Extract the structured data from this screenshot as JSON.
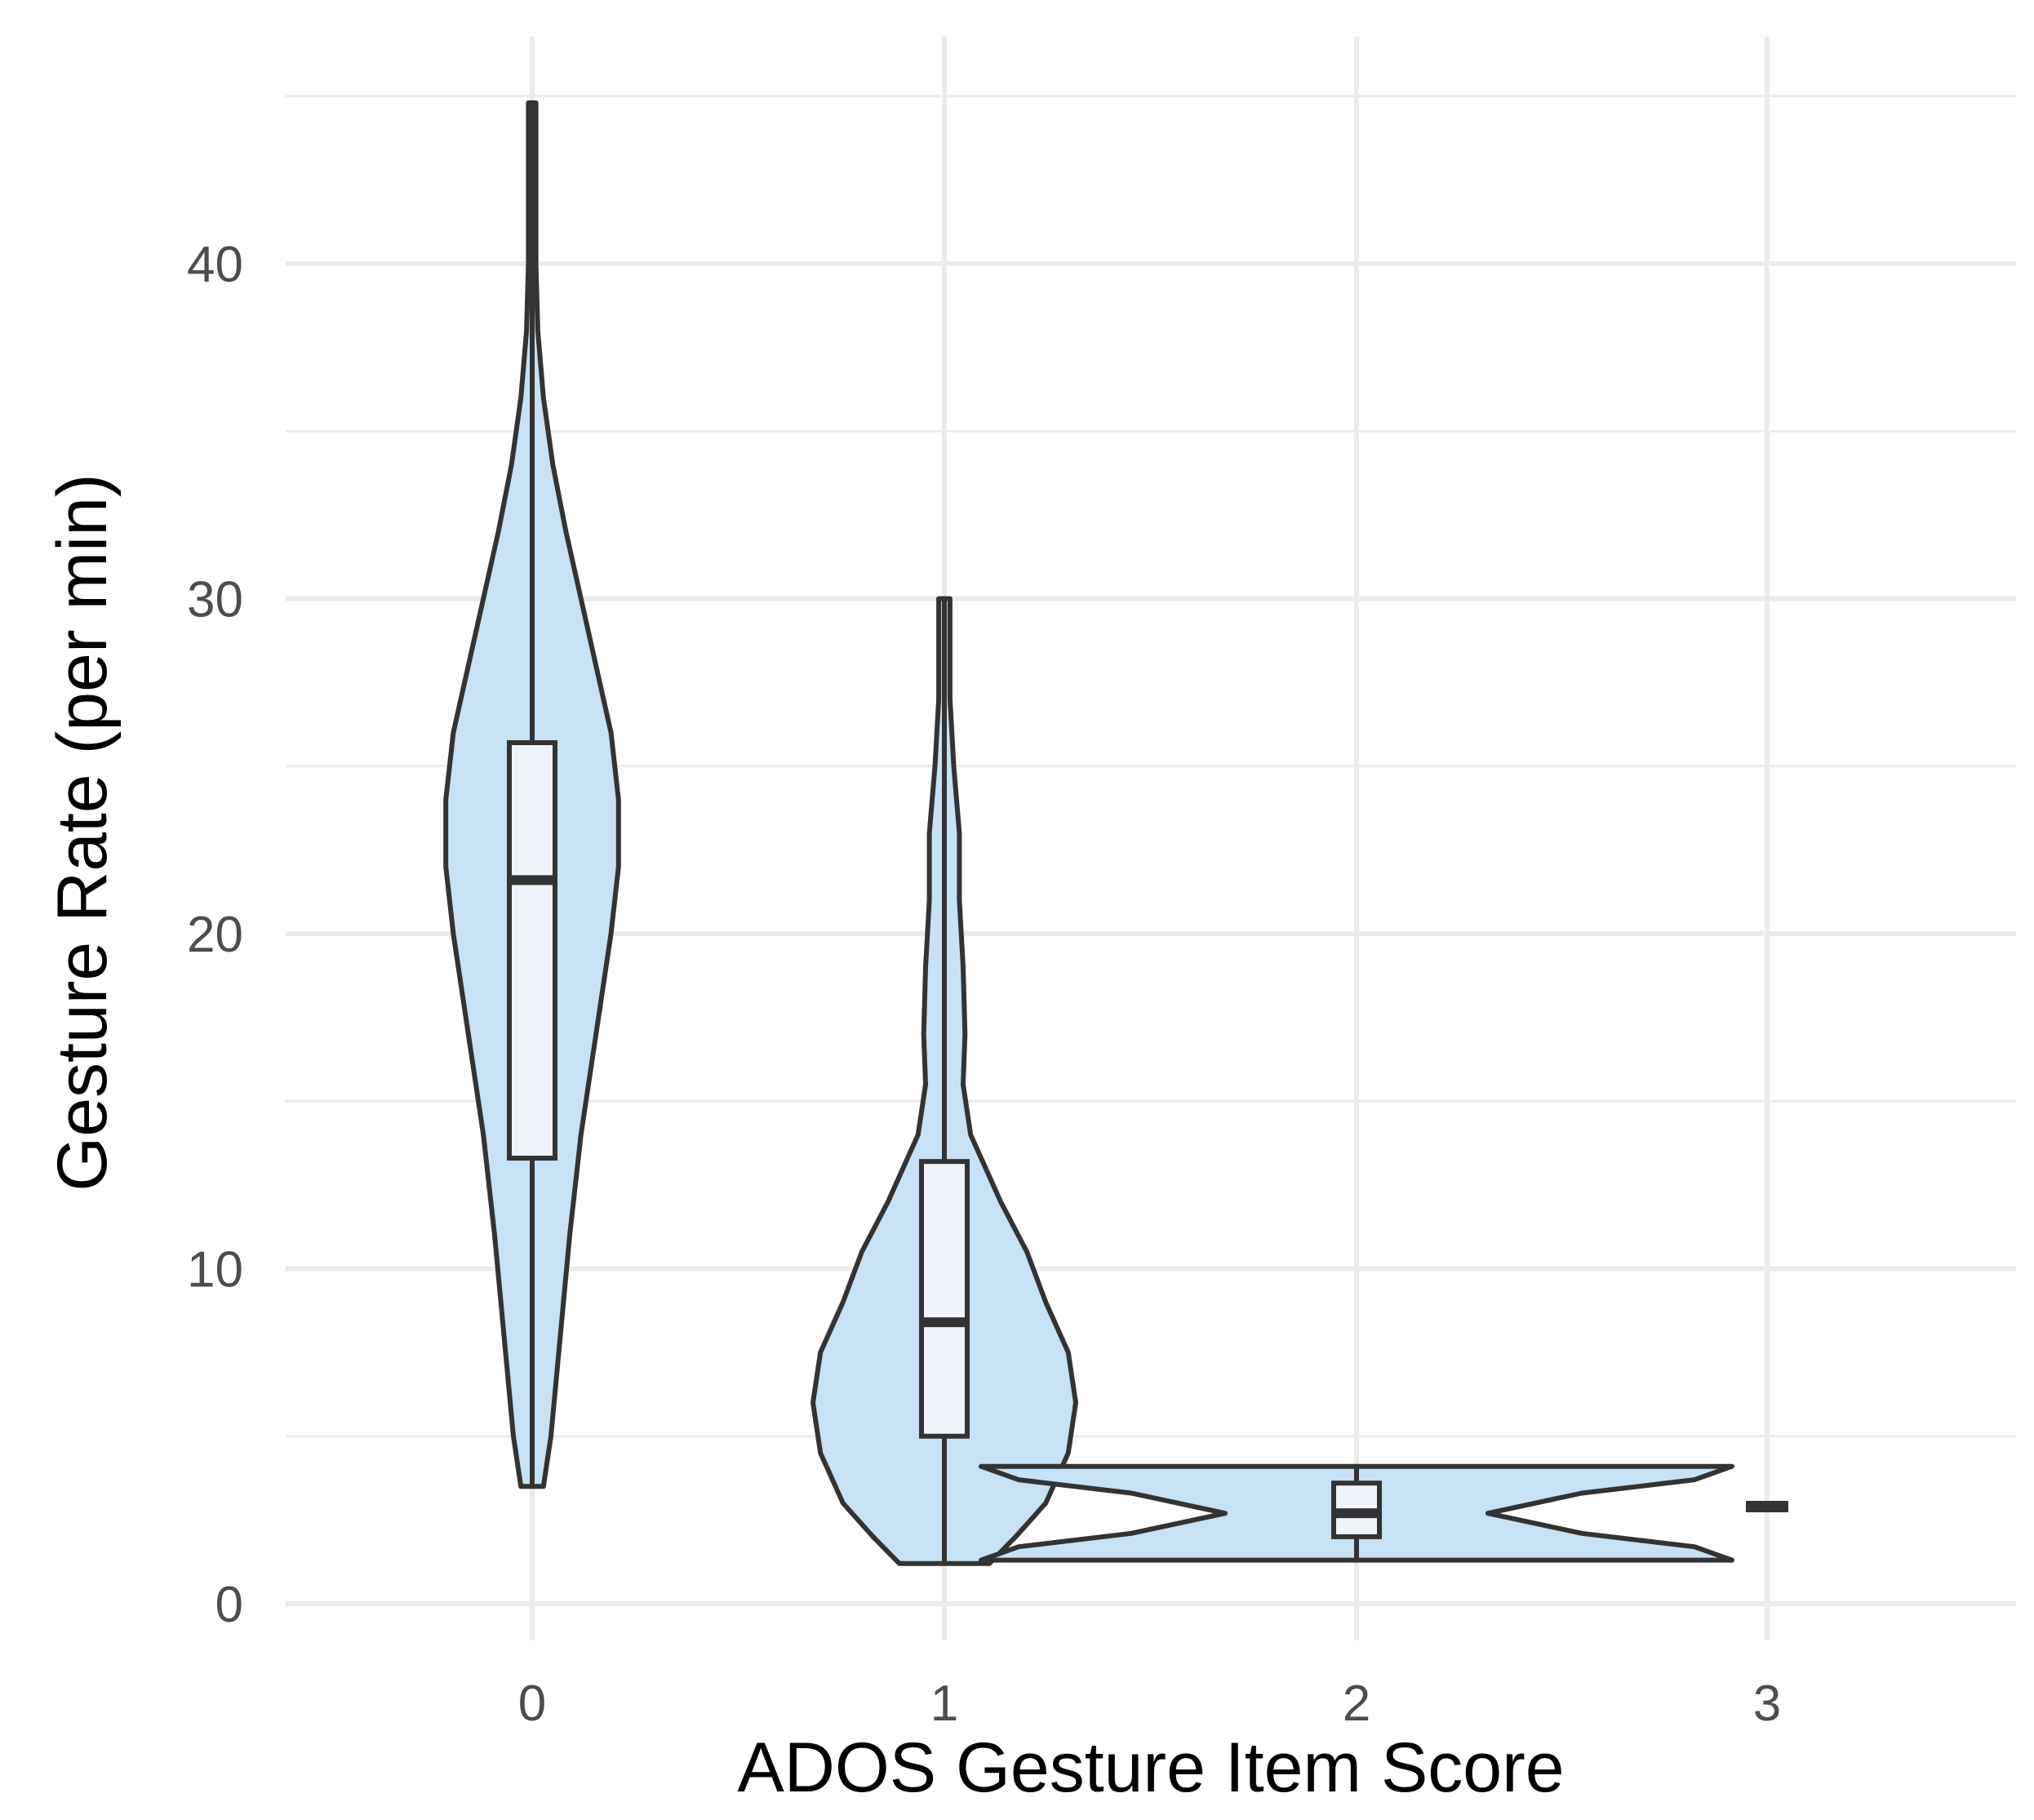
{
  "chart_data": {
    "type": "violin",
    "title": "",
    "xlabel": "ADOS Gesture Item Score",
    "ylabel": "Gesture Rate (per min)",
    "categories": [
      "0",
      "1",
      "2",
      "3"
    ],
    "ylim": [
      -1,
      47
    ],
    "yticks": [
      0,
      10,
      20,
      30,
      40
    ],
    "grid": true,
    "legend": "none",
    "colors": {
      "violin_fill": "#c6e2f4",
      "box_fill": "#eef4f9",
      "outline": "#333333",
      "grid": "#ebebeb"
    },
    "series": [
      {
        "category": "0",
        "min": 3.5,
        "max": 44.8,
        "box": {
          "q1": 13.3,
          "median": 21.6,
          "q3": 25.7
        },
        "density": [
          [
            3.5,
            0.03
          ],
          [
            5,
            0.05
          ],
          [
            8,
            0.075
          ],
          [
            11,
            0.1
          ],
          [
            14,
            0.13
          ],
          [
            17,
            0.17
          ],
          [
            20,
            0.21
          ],
          [
            22,
            0.23
          ],
          [
            24,
            0.23
          ],
          [
            26,
            0.21
          ],
          [
            28,
            0.17
          ],
          [
            30,
            0.13
          ],
          [
            32,
            0.09
          ],
          [
            34,
            0.055
          ],
          [
            36,
            0.03
          ],
          [
            38,
            0.015
          ],
          [
            40,
            0.01
          ],
          [
            44.8,
            0.01
          ]
        ]
      },
      {
        "category": "1",
        "min": 1.2,
        "max": 30,
        "box": {
          "q1": 5,
          "median": 8.4,
          "q3": 13.2
        },
        "density": [
          [
            1.2,
            0.12
          ],
          [
            2,
            0.19
          ],
          [
            3,
            0.27
          ],
          [
            4.5,
            0.33
          ],
          [
            6,
            0.35
          ],
          [
            7.5,
            0.33
          ],
          [
            9,
            0.27
          ],
          [
            10.5,
            0.22
          ],
          [
            12,
            0.15
          ],
          [
            14,
            0.07
          ],
          [
            15.5,
            0.05
          ],
          [
            17,
            0.055
          ],
          [
            19,
            0.05
          ],
          [
            21,
            0.04
          ],
          [
            23,
            0.04
          ],
          [
            25,
            0.025
          ],
          [
            27,
            0.015
          ],
          [
            30,
            0.015
          ]
        ]
      },
      {
        "category": "2",
        "min": 1.3,
        "max": 4.1,
        "box": {
          "q1": 2.0,
          "median": 2.7,
          "q3": 3.6
        },
        "density": [
          [
            1.3,
            1
          ],
          [
            1.7,
            0.9
          ],
          [
            2.1,
            0.6
          ],
          [
            2.7,
            0.35
          ],
          [
            3.3,
            0.6
          ],
          [
            3.7,
            0.9
          ],
          [
            4.1,
            1
          ]
        ]
      },
      {
        "category": "3",
        "min": 2.9,
        "max": 2.9,
        "box": {
          "q1": 2.9,
          "median": 2.9,
          "q3": 2.9
        },
        "density": []
      }
    ]
  }
}
